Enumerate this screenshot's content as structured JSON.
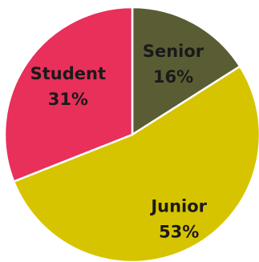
{
  "chart_data": {
    "type": "pie",
    "title": "",
    "start_category": "Senior",
    "direction": "clockwise",
    "legend": "none",
    "labels_position": "inside",
    "slices": [
      {
        "category": "Senior",
        "value": 16,
        "label": "Senior",
        "percent_label": "16%",
        "color": "#5a5d33"
      },
      {
        "category": "Junior",
        "value": 53,
        "label": "Junior",
        "percent_label": "53%",
        "color": "#d7c400"
      },
      {
        "category": "Student",
        "value": 31,
        "label": "Student",
        "percent_label": "31%",
        "color": "#e8305a"
      }
    ]
  }
}
